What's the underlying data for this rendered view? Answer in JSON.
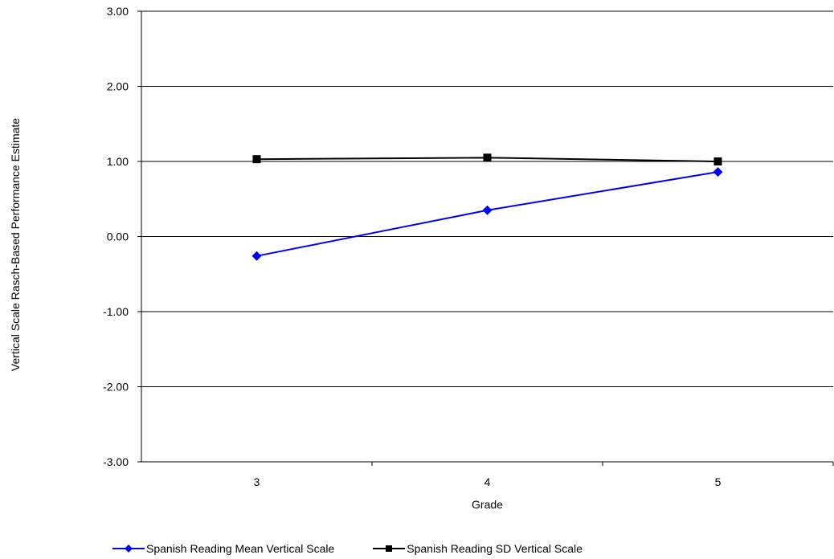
{
  "chart_data": {
    "type": "line",
    "categories": [
      "3",
      "4",
      "5"
    ],
    "series": [
      {
        "name": "Spanish Reading Mean Vertical Scale",
        "values": [
          -0.26,
          0.35,
          0.86
        ],
        "color": "#0000ff",
        "marker": "diamond"
      },
      {
        "name": "Spanish Reading SD Vertical Scale",
        "values": [
          1.03,
          1.05,
          1.0
        ],
        "color": "#000000",
        "marker": "square"
      }
    ],
    "xlabel": "Grade",
    "ylabel": "Vertical Scale Rasch-Based Performance Estimate",
    "ylim": [
      -3.0,
      3.0
    ],
    "yticks": [
      "3.00",
      "2.00",
      "1.00",
      "0.00",
      "-1.00",
      "-2.00",
      "-3.00"
    ],
    "ytick_values": [
      3,
      2,
      1,
      0,
      -1,
      -2,
      -3
    ],
    "grid": true,
    "legend_position": "bottom"
  }
}
